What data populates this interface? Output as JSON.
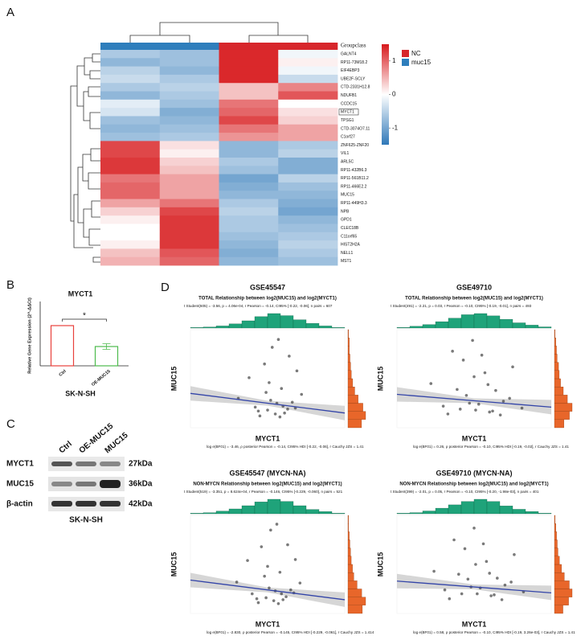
{
  "panel_labels": [
    "A",
    "B",
    "C",
    "D"
  ],
  "chart_data": [
    {
      "type": "heatmap",
      "legend_title": "Groupclass",
      "groups": [
        {
          "name": "NC",
          "color": "#d7262b"
        },
        {
          "name": "muc15",
          "color": "#2e7ebc"
        }
      ],
      "column_groups": [
        "muc15",
        "muc15",
        "NC",
        "NC"
      ],
      "highlight": "MYCT1",
      "colorbar": {
        "lim": [
          -1.5,
          1.5
        ],
        "ticks": [
          1,
          0,
          -1
        ],
        "low": "#2f78b8",
        "high": "#d7191c"
      },
      "rows": [
        "GALNT4",
        "RP11-73M18.2",
        "EIF4EBP3",
        "UBE2F-SCLY",
        "CTD-2331H12.8",
        "NDUFB1",
        "CCDC15",
        "MYCT1",
        "TPSG1",
        "CTD-3074O7.11",
        "C1orf27",
        "ZNF625-ZNF20",
        "VIL1",
        "ARL5C",
        "RP11-432B6.3",
        "RP11-561B11.2",
        "RP11-466E2.2",
        "MUC15",
        "RP11-449H3.3",
        "NPB",
        "GPD1",
        "CLEC18B",
        "C11orf65",
        "HIST2H2A",
        "NELL1",
        "MST1"
      ],
      "values": [
        [
          -0.6,
          -0.7,
          1.4,
          -0.1
        ],
        [
          -0.8,
          -0.7,
          1.4,
          0.1
        ],
        [
          -0.5,
          -0.8,
          1.4,
          -0.1
        ],
        [
          -0.4,
          -0.6,
          1.4,
          -0.4
        ],
        [
          -0.6,
          -0.5,
          0.4,
          0.8
        ],
        [
          -0.8,
          -0.6,
          0.4,
          1.1
        ],
        [
          -0.2,
          -0.7,
          0.9,
          0.0
        ],
        [
          -0.3,
          -0.9,
          1.0,
          0.2
        ],
        [
          -0.7,
          -0.8,
          1.2,
          0.3
        ],
        [
          -0.8,
          -0.7,
          0.9,
          0.6
        ],
        [
          -0.7,
          -0.6,
          0.7,
          0.6
        ],
        [
          1.2,
          0.2,
          -0.8,
          -0.6
        ],
        [
          1.2,
          0.1,
          -0.8,
          -0.5
        ],
        [
          1.3,
          0.3,
          -0.6,
          -0.9
        ],
        [
          1.3,
          0.4,
          -0.7,
          -0.9
        ],
        [
          0.9,
          0.6,
          -1.0,
          -0.5
        ],
        [
          1.0,
          0.6,
          -0.9,
          -0.7
        ],
        [
          1.0,
          0.6,
          -0.8,
          -0.8
        ],
        [
          0.6,
          0.9,
          -0.6,
          -0.9
        ],
        [
          0.3,
          1.2,
          -0.5,
          -1.0
        ],
        [
          0.1,
          1.3,
          -0.6,
          -0.8
        ],
        [
          0.0,
          1.3,
          -0.6,
          -0.7
        ],
        [
          0.0,
          1.3,
          -0.7,
          -0.6
        ],
        [
          0.1,
          1.3,
          -0.8,
          -0.5
        ],
        [
          0.4,
          1.1,
          -0.9,
          -0.6
        ],
        [
          0.5,
          1.0,
          -0.8,
          -0.7
        ]
      ]
    },
    {
      "type": "bar",
      "title": "MYCT1",
      "ylabel": "Relative Gene Expression (2^-ΔΔCt)",
      "xlabel": "SK-N-SH",
      "categories": [
        "Ctrl",
        "OE-MUC15"
      ],
      "values": [
        1.0,
        0.48
      ],
      "errors": [
        0,
        0.07
      ],
      "colors": [
        "#e8413c",
        "#4dbb4d"
      ],
      "ylim": [
        0,
        1.5
      ],
      "annotation": "*"
    },
    {
      "type": "scatter",
      "title": "GSE45547",
      "subtitle": "TOTAL Relationship between log2(MUC15) and log2(MYCT1)",
      "stats": "t Student(605) = -3.56, p = 4.06e-04, r Pearson = -0.14, CI95% [-0.22, -0.06], n pairs = 607",
      "bayes": "log e(BF01) = -3.46, ρ posterior Pearson = -0.14, CI95% HDI [-0.22, -0.06], r Cauchy JZS = 1.41",
      "xlabel": "MYCT1",
      "ylabel": "MUC15",
      "xlim": [
        0,
        10
      ],
      "ylim": [
        0,
        10
      ],
      "x": [
        3.1,
        4.2,
        4.8,
        5.0,
        5.3,
        5.6,
        5.9,
        6.1,
        6.4,
        6.8,
        7.2,
        3.8,
        4.5,
        5.2,
        5.7,
        6.3,
        6.9,
        4.9,
        5.5,
        6.0,
        4.4,
        5.8,
        6.6,
        5.1
      ],
      "y": [
        3.0,
        2.1,
        6.5,
        1.8,
        8.2,
        2.5,
        4.0,
        1.5,
        7.3,
        2.0,
        3.4,
        5.1,
        1.2,
        2.8,
        9.0,
        1.9,
        5.8,
        3.6,
        1.4,
        2.2,
        1.7,
        1.1,
        2.6,
        4.6
      ],
      "fit": [
        3.5,
        1.5
      ],
      "fit_color": "#3344a8",
      "hist_top": [
        1,
        2,
        4,
        8,
        14,
        22,
        28,
        24,
        16,
        9,
        4,
        1
      ],
      "hist_right": [
        20,
        26,
        22,
        15,
        10,
        7,
        5,
        4,
        3,
        2,
        2,
        1
      ],
      "hist_top_color": "#1fa37a",
      "hist_right_color": "#e8662a"
    },
    {
      "type": "scatter",
      "title": "GSE49710",
      "subtitle": "TOTAL Relationship between log2(MUC15) and log2(MYCT1)",
      "stats": "t Student(491) = -2.21, p = 0.03, r Pearson = -0.10, CI95% [-0.19, -0.01], n pairs = 493",
      "bayes": "log e(BF01) = 0.26, ρ posterior Pearson = -0.10, CI95% HDI [-0.19, -0.02], r Cauchy JZS = 1.41",
      "xlabel": "MYCT1",
      "ylabel": "MUC15",
      "xlim": [
        0,
        10
      ],
      "ylim": [
        0,
        10
      ],
      "x": [
        2.2,
        3.0,
        3.6,
        4.1,
        4.5,
        4.9,
        5.3,
        5.7,
        6.0,
        6.4,
        6.9,
        7.5,
        8.1,
        3.3,
        4.3,
        5.1,
        5.9,
        6.7,
        7.3,
        4.7,
        5.5,
        6.2,
        3.9,
        5.0
      ],
      "y": [
        4.5,
        2.2,
        7.8,
        1.9,
        3.3,
        8.9,
        2.4,
        5.6,
        1.6,
        3.8,
        2.7,
        6.2,
        2.0,
        1.4,
        6.9,
        1.8,
        4.4,
        1.3,
        3.0,
        2.5,
        7.4,
        1.7,
        3.9,
        5.2
      ],
      "fit": [
        3.4,
        2.1
      ],
      "fit_color": "#3344a8",
      "hist_top": [
        1,
        3,
        6,
        11,
        17,
        23,
        25,
        21,
        15,
        9,
        5,
        2
      ],
      "hist_right": [
        14,
        22,
        26,
        19,
        13,
        9,
        7,
        6,
        4,
        3,
        2,
        1
      ],
      "hist_top_color": "#1fa37a",
      "hist_right_color": "#e8662a"
    },
    {
      "type": "scatter",
      "title": "GSE45547 (MYCN-NA)",
      "subtitle": "NON-MYCN Relationship between log2(MUC15) and log2(MYCT1)",
      "stats": "t Student(519) = -3.351, p = 8.624e-04, r Pearson = -0.146, CI95% [-0.229, -0.060], n pairs = 521",
      "bayes": "log e(BF01) = -2.830, ρ posterior Pearson = -0.145, CI95% HDI [-0.229, -0.061], r Cauchy JZS = 1.414",
      "xlabel": "MYCT1",
      "ylabel": "MUC15",
      "xlim": [
        0,
        10
      ],
      "ylim": [
        0,
        10
      ],
      "x": [
        3.0,
        4.0,
        4.6,
        4.9,
        5.2,
        5.5,
        5.8,
        6.0,
        6.3,
        6.7,
        7.1,
        3.7,
        4.4,
        5.1,
        5.6,
        6.2,
        6.8,
        4.8,
        5.4,
        5.9,
        4.3,
        5.7,
        6.5,
        5.0
      ],
      "y": [
        3.2,
        2.0,
        6.8,
        1.6,
        8.5,
        2.3,
        4.2,
        1.4,
        7.0,
        2.1,
        3.1,
        5.4,
        1.1,
        2.6,
        9.1,
        1.7,
        5.5,
        3.8,
        1.3,
        2.0,
        1.5,
        1.0,
        2.4,
        4.8
      ],
      "fit": [
        3.4,
        1.4
      ],
      "fit_color": "#3344a8",
      "hist_top": [
        1,
        2,
        5,
        9,
        15,
        22,
        27,
        23,
        15,
        8,
        4,
        1
      ],
      "hist_right": [
        22,
        27,
        21,
        14,
        9,
        7,
        5,
        4,
        3,
        2,
        1,
        1
      ],
      "hist_top_color": "#1fa37a",
      "hist_right_color": "#e8662a"
    },
    {
      "type": "scatter",
      "title": "GSE49710 (MYCN-NA)",
      "subtitle": "NON-MYCN Relationship between log2(MUC15) and log2(MYCT1)",
      "stats": "t Student(399) = -2.01, p = 0.05, r Pearson = -0.10, CI95% [-0.20, -1.98e-03], n pairs = 401",
      "bayes": "log e(BF01) = 0.58, ρ posterior Pearson = -0.10, CI95% HDI [-0.19, 3.26e-03], r Cauchy JZS = 1.41",
      "xlabel": "MYCT1",
      "ylabel": "MUC15",
      "xlim": [
        0,
        10
      ],
      "ylim": [
        0,
        10
      ],
      "x": [
        2.4,
        3.1,
        3.7,
        4.2,
        4.6,
        5.0,
        5.4,
        5.8,
        6.1,
        6.5,
        7.0,
        7.6,
        8.2,
        3.4,
        4.4,
        5.2,
        6.0,
        6.8,
        7.4,
        4.8,
        5.6,
        6.3,
        4.0,
        5.1
      ],
      "y": [
        4.3,
        2.4,
        7.5,
        2.0,
        3.5,
        8.7,
        2.6,
        5.3,
        1.8,
        3.6,
        2.9,
        6.0,
        2.2,
        1.5,
        6.6,
        2.0,
        4.1,
        1.4,
        3.2,
        2.7,
        7.1,
        1.9,
        4.0,
        5.0
      ],
      "fit": [
        3.3,
        2.1
      ],
      "fit_color": "#3344a8",
      "hist_top": [
        1,
        2,
        5,
        10,
        16,
        22,
        26,
        22,
        14,
        8,
        4,
        1
      ],
      "hist_right": [
        12,
        20,
        25,
        21,
        14,
        10,
        7,
        5,
        4,
        3,
        2,
        1
      ],
      "hist_top_color": "#1fa37a",
      "hist_right_color": "#e8662a"
    }
  ],
  "blot": {
    "columns": [
      "Ctrl",
      "OE-MUC15",
      "MUC15"
    ],
    "rows": [
      {
        "protein": "MYCT1",
        "size": "27kDa"
      },
      {
        "protein": "MUC15",
        "size": "36kDa"
      },
      {
        "protein": "β-actin",
        "size": "42kDa"
      }
    ],
    "cell_line": "SK-N-SH"
  }
}
